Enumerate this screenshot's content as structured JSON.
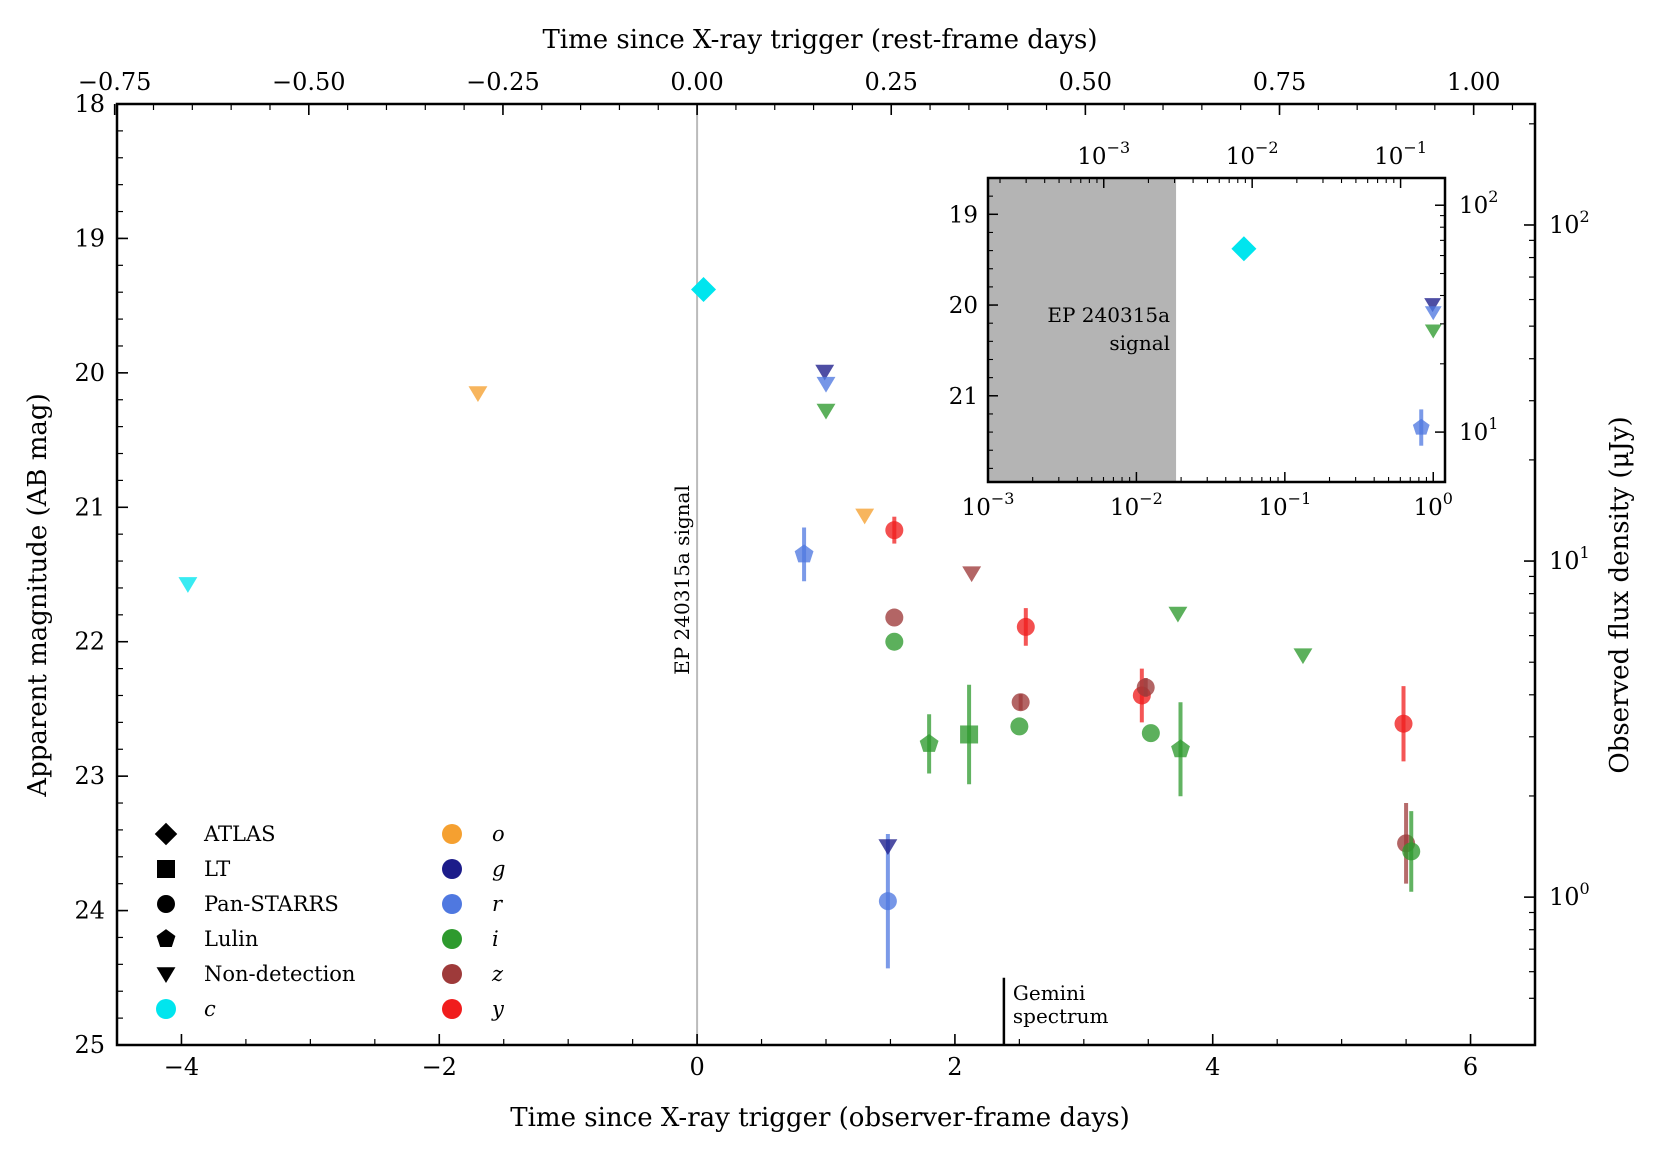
{
  "chart_data": {
    "type": "scatter",
    "xlabel": "Time since X-ray trigger (observer-frame days)",
    "xlabel_top": "Time since X-ray trigger (rest-frame days)",
    "ylabel": "Apparent magnitude (AB mag)",
    "ylabel_right": "Observed flux density (μJy)",
    "xlim": [
      -4.5,
      6.5
    ],
    "ylim": [
      25,
      18
    ],
    "y_inverted": true,
    "grid": false,
    "x_ticks": [
      -4,
      -2,
      0,
      2,
      4,
      6
    ],
    "x_tick_labels": [
      "−4",
      "−2",
      "0",
      "2",
      "4",
      "6"
    ],
    "x_top_ticks": [
      -0.75,
      -0.5,
      -0.25,
      0,
      0.25,
      0.5,
      0.75,
      1.0
    ],
    "x_top_tick_labels": [
      "−0.75",
      "−0.50",
      "−0.25",
      "0.00",
      "0.25",
      "0.50",
      "0.75",
      "1.00"
    ],
    "rest_frame_factor": 0.166,
    "y_ticks": [
      18,
      19,
      20,
      21,
      22,
      23,
      24,
      25
    ],
    "y_tick_labels": [
      "18",
      "19",
      "20",
      "21",
      "22",
      "23",
      "24",
      "25"
    ],
    "right_axis": {
      "scale": "log",
      "unit": "μJy",
      "zero_point_mag": 23.9,
      "major_ticks": [
        {
          "value": 1,
          "label": "10",
          "exp": "0"
        },
        {
          "value": 10,
          "label": "10",
          "exp": "1"
        },
        {
          "value": 100,
          "label": "10",
          "exp": "2"
        }
      ]
    },
    "colors": {
      "c": "#00e5ee",
      "o": "#f5a030",
      "g": "#1c1c8a",
      "r": "#4f78e0",
      "i": "#2e9a2e",
      "z": "#9e3a3a",
      "y": "#f01d1d"
    },
    "annotations": {
      "signal_line": {
        "x": 0,
        "text": "EP 240315a signal",
        "color": "#bbbbbb"
      },
      "gemini": {
        "x": 2.38,
        "y_top": 24.5,
        "y_bottom": 25,
        "lines": [
          "Gemini",
          "spectrum"
        ]
      }
    },
    "legend": {
      "placement": "lower-left",
      "instruments": [
        {
          "name": "ATLAS",
          "marker": "diamond"
        },
        {
          "name": "LT",
          "marker": "square"
        },
        {
          "name": "Pan-STARRS",
          "marker": "circle"
        },
        {
          "name": "Lulin",
          "marker": "pentagon"
        },
        {
          "name": "Non-detection",
          "marker": "triangle-down"
        }
      ],
      "filters": [
        "c",
        "o",
        "g",
        "r",
        "i",
        "z",
        "y"
      ]
    },
    "points": [
      {
        "x": 0.05,
        "y": 19.38,
        "filter": "c",
        "marker": "diamond"
      },
      {
        "x": -3.95,
        "y": 21.57,
        "filter": "c",
        "marker": "triangle-down"
      },
      {
        "x": -1.7,
        "y": 20.15,
        "filter": "o",
        "marker": "triangle-down"
      },
      {
        "x": 1.3,
        "y": 21.06,
        "filter": "o",
        "marker": "triangle-down"
      },
      {
        "x": 0.99,
        "y": 19.99,
        "filter": "g",
        "marker": "triangle-down"
      },
      {
        "x": 1.0,
        "y": 20.08,
        "filter": "r",
        "marker": "triangle-down"
      },
      {
        "x": 1.0,
        "y": 20.28,
        "filter": "i",
        "marker": "triangle-down"
      },
      {
        "x": 0.83,
        "y": 21.35,
        "err": 0.2,
        "filter": "r",
        "marker": "pentagon"
      },
      {
        "x": 1.53,
        "y": 21.17,
        "err": 0.1,
        "filter": "y",
        "marker": "circle"
      },
      {
        "x": 1.53,
        "y": 21.82,
        "filter": "z",
        "marker": "circle"
      },
      {
        "x": 1.53,
        "y": 22.0,
        "filter": "i",
        "marker": "circle"
      },
      {
        "x": 1.48,
        "y": 23.93,
        "err": 0.5,
        "filter": "r",
        "marker": "circle"
      },
      {
        "x": 1.48,
        "y": 23.52,
        "filter": "g",
        "marker": "triangle-down"
      },
      {
        "x": 1.8,
        "y": 22.76,
        "err": 0.22,
        "filter": "i",
        "marker": "pentagon"
      },
      {
        "x": 2.11,
        "y": 22.69,
        "err": 0.37,
        "filter": "i",
        "marker": "square"
      },
      {
        "x": 2.13,
        "y": 21.49,
        "filter": "z",
        "marker": "triangle-down"
      },
      {
        "x": 2.5,
        "y": 22.63,
        "filter": "i",
        "marker": "circle"
      },
      {
        "x": 2.51,
        "y": 22.45,
        "err": 0.06,
        "filter": "z",
        "marker": "circle"
      },
      {
        "x": 2.55,
        "y": 21.89,
        "err": 0.14,
        "filter": "y",
        "marker": "circle"
      },
      {
        "x": 3.45,
        "y": 22.4,
        "err": 0.2,
        "filter": "y",
        "marker": "circle"
      },
      {
        "x": 3.48,
        "y": 22.34,
        "err": 0.07,
        "filter": "z",
        "marker": "circle"
      },
      {
        "x": 3.52,
        "y": 22.68,
        "filter": "i",
        "marker": "circle"
      },
      {
        "x": 3.73,
        "y": 21.79,
        "filter": "i",
        "marker": "triangle-down"
      },
      {
        "x": 3.75,
        "y": 22.8,
        "err": 0.35,
        "filter": "i",
        "marker": "pentagon"
      },
      {
        "x": 4.7,
        "y": 22.1,
        "filter": "i",
        "marker": "triangle-down"
      },
      {
        "x": 5.48,
        "y": 22.61,
        "err": 0.28,
        "filter": "y",
        "marker": "circle"
      },
      {
        "x": 5.5,
        "y": 23.5,
        "err": 0.3,
        "filter": "z",
        "marker": "circle"
      },
      {
        "x": 5.54,
        "y": 23.56,
        "err": 0.3,
        "filter": "i",
        "marker": "circle"
      }
    ],
    "inset": {
      "xscale": "log",
      "xlim": [
        0.001,
        1.2
      ],
      "ylim": [
        21.95,
        18.6
      ],
      "x_ticks": [
        0.001,
        0.01,
        0.1,
        1
      ],
      "x_tick_labels": [
        {
          "b": "10",
          "e": "−3"
        },
        {
          "b": "10",
          "e": "−2"
        },
        {
          "b": "10",
          "e": "−1"
        },
        {
          "b": "10",
          "e": "0"
        }
      ],
      "x_top_ticks": [
        0.001,
        0.01,
        0.1
      ],
      "x_top_tick_labels": [
        {
          "b": "10",
          "e": "−3"
        },
        {
          "b": "10",
          "e": "−2"
        },
        {
          "b": "10",
          "e": "−1"
        }
      ],
      "y_ticks": [
        19,
        20,
        21
      ],
      "y_tick_labels": [
        "19",
        "20",
        "21"
      ],
      "right_ticks": [
        {
          "value": 10,
          "label": "10",
          "exp": "1"
        },
        {
          "value": 100,
          "label": "10",
          "exp": "2"
        }
      ],
      "shaded_region": {
        "x_end": 0.0185,
        "color": "#b4b4b4",
        "lines": [
          "EP 240315a",
          "signal"
        ]
      },
      "points": [
        {
          "x": 0.053,
          "y": 19.38,
          "filter": "c",
          "marker": "diamond"
        },
        {
          "x": 0.99,
          "y": 19.99,
          "filter": "g",
          "marker": "triangle-down"
        },
        {
          "x": 1.0,
          "y": 20.08,
          "filter": "r",
          "marker": "triangle-down"
        },
        {
          "x": 1.0,
          "y": 20.28,
          "filter": "i",
          "marker": "triangle-down"
        },
        {
          "x": 0.83,
          "y": 21.35,
          "err": 0.2,
          "filter": "r",
          "marker": "pentagon"
        },
        {
          "x": 1.3,
          "y": 21.06,
          "filter": "o",
          "marker": "triangle-down"
        }
      ]
    }
  }
}
